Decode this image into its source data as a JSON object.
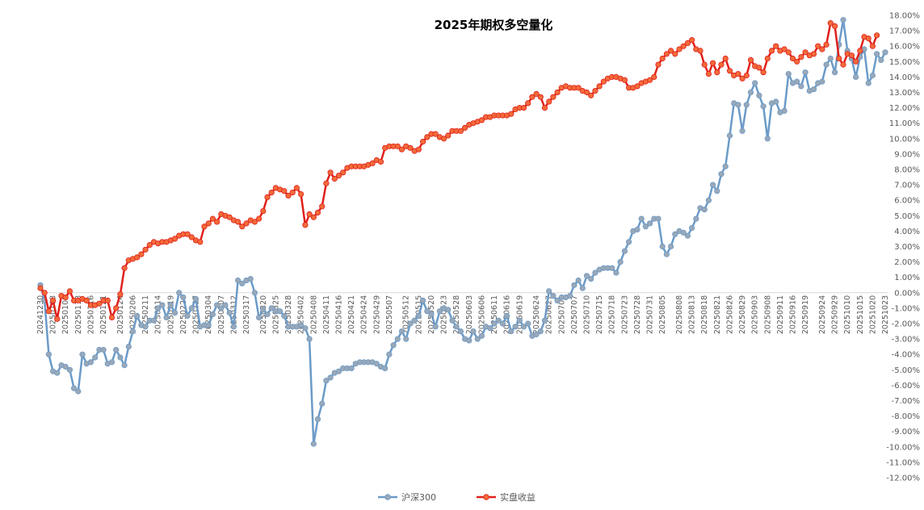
{
  "chart_data": {
    "type": "line",
    "title": "2025年期权多空量化",
    "y_axis_position": "right",
    "ylim": [
      -0.12,
      0.18
    ],
    "ytick_step": 0.01,
    "ytick_labels": [
      "18.00%",
      "17.00%",
      "16.00%",
      "15.00%",
      "14.00%",
      "13.00%",
      "12.00%",
      "11.00%",
      "10.00%",
      "9.00%",
      "8.00%",
      "7.00%",
      "6.00%",
      "5.00%",
      "4.00%",
      "3.00%",
      "2.00%",
      "1.00%",
      "0.00%",
      "-1.00%",
      "-2.00%",
      "-3.00%",
      "-4.00%",
      "-5.00%",
      "-6.00%",
      "-7.00%",
      "-8.00%",
      "-9.00%",
      "-10.00%",
      "-11.00%",
      "-12.00%"
    ],
    "xtick_labels": [
      "20241230",
      "20250103",
      "20250108",
      "20250113",
      "20250116",
      "20250121",
      "20250124",
      "20250206",
      "20250211",
      "20250214",
      "20250219",
      "20250224",
      "20250227",
      "20250304",
      "20250307",
      "20250312",
      "20250317",
      "20250320",
      "20250325",
      "20250328",
      "20250402",
      "20250408",
      "20250411",
      "20250416",
      "20250421",
      "20250424",
      "20250429",
      "20250507",
      "20250512",
      "20250515",
      "20250520",
      "20250523",
      "20250528",
      "20250603",
      "20250606",
      "20250611",
      "20250616",
      "20250619",
      "20250624",
      "20250627",
      "20250702",
      "20250707",
      "20250710",
      "20250715",
      "20250718",
      "20250723",
      "20250728",
      "20250731",
      "20250805",
      "20250808",
      "20250813",
      "20250818",
      "20250821",
      "20250826",
      "20250829",
      "20250903",
      "20250908",
      "20250911",
      "20250916",
      "20250919",
      "20250924",
      "20250929",
      "20251010",
      "20251015",
      "20251020",
      "20251023"
    ],
    "grid": false,
    "legend": "bottom",
    "series": [
      {
        "name": "沪深300",
        "color": "#6b9bc8",
        "marker_color": "#9aa8b7",
        "values": [
          0.005,
          -0.005,
          -0.04,
          -0.051,
          -0.052,
          -0.047,
          -0.048,
          -0.05,
          -0.062,
          -0.064,
          -0.04,
          -0.046,
          -0.045,
          -0.042,
          -0.037,
          -0.037,
          -0.046,
          -0.045,
          -0.037,
          -0.042,
          -0.047,
          -0.035,
          -0.025,
          -0.015,
          -0.021,
          -0.022,
          -0.018,
          -0.018,
          -0.01,
          -0.008,
          -0.016,
          -0.008,
          -0.013,
          0.0,
          -0.003,
          -0.015,
          -0.01,
          -0.004,
          -0.022,
          -0.021,
          -0.021,
          -0.014,
          -0.008,
          -0.01,
          -0.008,
          -0.013,
          -0.022,
          0.008,
          0.006,
          0.008,
          0.009,
          0.0,
          -0.016,
          -0.011,
          -0.014,
          -0.01,
          -0.012,
          -0.012,
          -0.015,
          -0.022,
          -0.022,
          -0.022,
          -0.021,
          -0.023,
          -0.03,
          -0.098,
          -0.082,
          -0.072,
          -0.057,
          -0.055,
          -0.052,
          -0.051,
          -0.049,
          -0.049,
          -0.049,
          -0.046,
          -0.045,
          -0.045,
          -0.045,
          -0.045,
          -0.046,
          -0.048,
          -0.049,
          -0.04,
          -0.034,
          -0.03,
          -0.025,
          -0.03,
          -0.02,
          -0.018,
          -0.015,
          -0.005,
          -0.012,
          -0.014,
          -0.022,
          -0.012,
          -0.01,
          -0.011,
          -0.018,
          -0.022,
          -0.025,
          -0.03,
          -0.031,
          -0.025,
          -0.03,
          -0.028,
          -0.022,
          -0.023,
          -0.02,
          -0.018,
          -0.02,
          -0.015,
          -0.025,
          -0.022,
          -0.018,
          -0.022,
          -0.02,
          -0.028,
          -0.027,
          -0.025,
          -0.018,
          0.001,
          -0.002,
          -0.005,
          -0.003,
          -0.003,
          -0.002,
          0.005,
          0.008,
          0.003,
          0.011,
          0.009,
          0.013,
          0.015,
          0.016,
          0.016,
          0.016,
          0.013,
          0.02,
          0.027,
          0.033,
          0.04,
          0.041,
          0.048,
          0.043,
          0.045,
          0.048,
          0.048,
          0.03,
          0.025,
          0.03,
          0.038,
          0.04,
          0.039,
          0.037,
          0.042,
          0.048,
          0.055,
          0.054,
          0.06,
          0.07,
          0.066,
          0.077,
          0.082,
          0.102,
          0.123,
          0.122,
          0.105,
          0.122,
          0.13,
          0.136,
          0.128,
          0.121,
          0.1,
          0.123,
          0.124,
          0.117,
          0.118,
          0.142,
          0.136,
          0.137,
          0.134,
          0.143,
          0.131,
          0.132,
          0.136,
          0.137,
          0.148,
          0.152,
          0.143,
          0.161,
          0.177,
          0.157,
          0.152,
          0.14,
          0.153,
          0.158,
          0.136,
          0.141,
          0.155,
          0.151,
          0.156
        ]
      },
      {
        "name": "实盘收益",
        "color": "#e0201b",
        "marker_color": "#f26a3a",
        "values": [
          0.003,
          0.0,
          -0.012,
          -0.005,
          -0.017,
          -0.002,
          -0.003,
          0.001,
          -0.005,
          -0.005,
          -0.004,
          -0.005,
          -0.008,
          -0.008,
          -0.007,
          -0.005,
          -0.005,
          -0.016,
          -0.01,
          -0.001,
          0.016,
          0.021,
          0.022,
          0.023,
          0.025,
          0.028,
          0.031,
          0.033,
          0.032,
          0.033,
          0.033,
          0.034,
          0.035,
          0.037,
          0.038,
          0.038,
          0.036,
          0.034,
          0.033,
          0.043,
          0.045,
          0.048,
          0.046,
          0.051,
          0.05,
          0.049,
          0.047,
          0.046,
          0.043,
          0.045,
          0.047,
          0.046,
          0.048,
          0.053,
          0.062,
          0.065,
          0.068,
          0.067,
          0.066,
          0.063,
          0.065,
          0.068,
          0.064,
          0.044,
          0.051,
          0.049,
          0.052,
          0.056,
          0.071,
          0.078,
          0.074,
          0.076,
          0.078,
          0.081,
          0.082,
          0.082,
          0.082,
          0.082,
          0.083,
          0.084,
          0.086,
          0.085,
          0.094,
          0.095,
          0.095,
          0.095,
          0.093,
          0.095,
          0.094,
          0.092,
          0.093,
          0.098,
          0.101,
          0.103,
          0.103,
          0.101,
          0.1,
          0.102,
          0.105,
          0.105,
          0.105,
          0.107,
          0.109,
          0.11,
          0.111,
          0.112,
          0.114,
          0.114,
          0.115,
          0.115,
          0.115,
          0.115,
          0.116,
          0.119,
          0.12,
          0.12,
          0.123,
          0.127,
          0.129,
          0.127,
          0.12,
          0.124,
          0.127,
          0.13,
          0.133,
          0.134,
          0.133,
          0.133,
          0.133,
          0.131,
          0.13,
          0.128,
          0.131,
          0.134,
          0.137,
          0.139,
          0.14,
          0.14,
          0.139,
          0.138,
          0.133,
          0.133,
          0.134,
          0.136,
          0.137,
          0.138,
          0.14,
          0.148,
          0.152,
          0.155,
          0.157,
          0.155,
          0.158,
          0.16,
          0.162,
          0.164,
          0.158,
          0.157,
          0.148,
          0.142,
          0.149,
          0.143,
          0.148,
          0.152,
          0.144,
          0.141,
          0.142,
          0.139,
          0.141,
          0.151,
          0.147,
          0.146,
          0.143,
          0.152,
          0.157,
          0.16,
          0.157,
          0.158,
          0.156,
          0.152,
          0.15,
          0.153,
          0.156,
          0.154,
          0.155,
          0.16,
          0.158,
          0.161,
          0.175,
          0.173,
          0.152,
          0.148,
          0.155,
          0.154,
          0.15,
          0.157,
          0.166,
          0.165,
          0.16,
          0.167
        ]
      }
    ]
  }
}
